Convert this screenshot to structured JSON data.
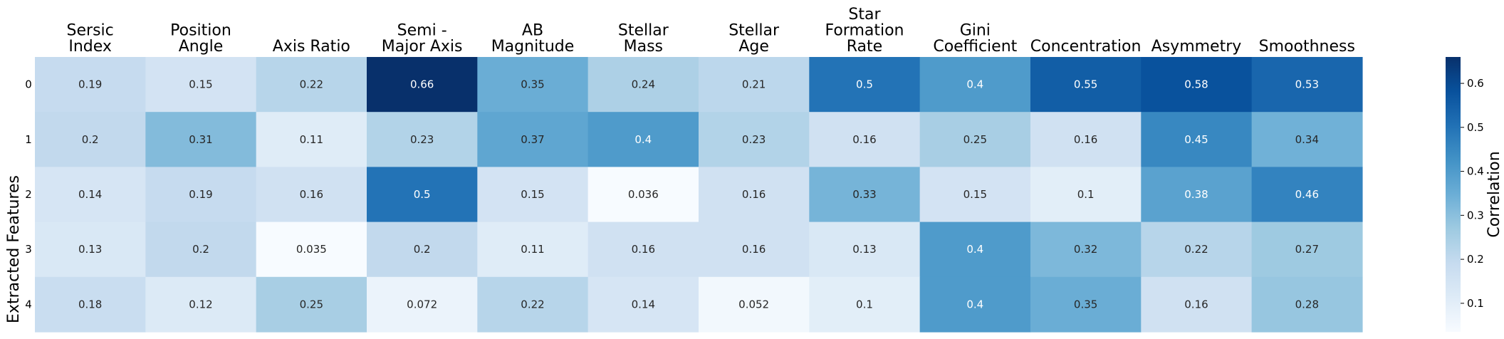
{
  "chart_data": {
    "type": "heatmap",
    "title": "",
    "xlabel": "",
    "ylabel": "Extracted Features",
    "columns": [
      [
        "Sersic",
        "Index"
      ],
      [
        "Position",
        "Angle"
      ],
      [
        "Axis Ratio"
      ],
      [
        "Semi -",
        "Major Axis"
      ],
      [
        "AB",
        "Magnitude"
      ],
      [
        "Stellar",
        "Mass"
      ],
      [
        "Stellar",
        "Age"
      ],
      [
        "Star",
        "Formation",
        "Rate"
      ],
      [
        "Gini",
        "Coefficient"
      ],
      [
        "Concentration"
      ],
      [
        "Asymmetry"
      ],
      [
        "Smoothness"
      ]
    ],
    "rows": [
      "0",
      "1",
      "2",
      "3",
      "4"
    ],
    "values": [
      [
        0.19,
        0.15,
        0.22,
        0.66,
        0.35,
        0.24,
        0.21,
        0.5,
        0.4,
        0.55,
        0.58,
        0.53
      ],
      [
        0.2,
        0.31,
        0.11,
        0.23,
        0.37,
        0.4,
        0.23,
        0.16,
        0.25,
        0.16,
        0.45,
        0.34
      ],
      [
        0.14,
        0.19,
        0.16,
        0.5,
        0.15,
        0.036,
        0.16,
        0.33,
        0.15,
        0.1,
        0.38,
        0.46
      ],
      [
        0.13,
        0.2,
        0.035,
        0.2,
        0.11,
        0.16,
        0.16,
        0.13,
        0.4,
        0.32,
        0.22,
        0.27
      ],
      [
        0.18,
        0.12,
        0.25,
        0.072,
        0.22,
        0.14,
        0.052,
        0.1,
        0.4,
        0.35,
        0.16,
        0.28
      ]
    ],
    "colormap": "Blues",
    "vmin": 0.035,
    "vmax": 0.66,
    "colorbar": {
      "label": "Correlation",
      "ticks": [
        0.1,
        0.2,
        0.3,
        0.4,
        0.5,
        0.6
      ],
      "tick_labels": [
        "0.1",
        "0.2",
        "0.3",
        "0.4",
        "0.5",
        "0.6"
      ]
    },
    "grid": false
  }
}
